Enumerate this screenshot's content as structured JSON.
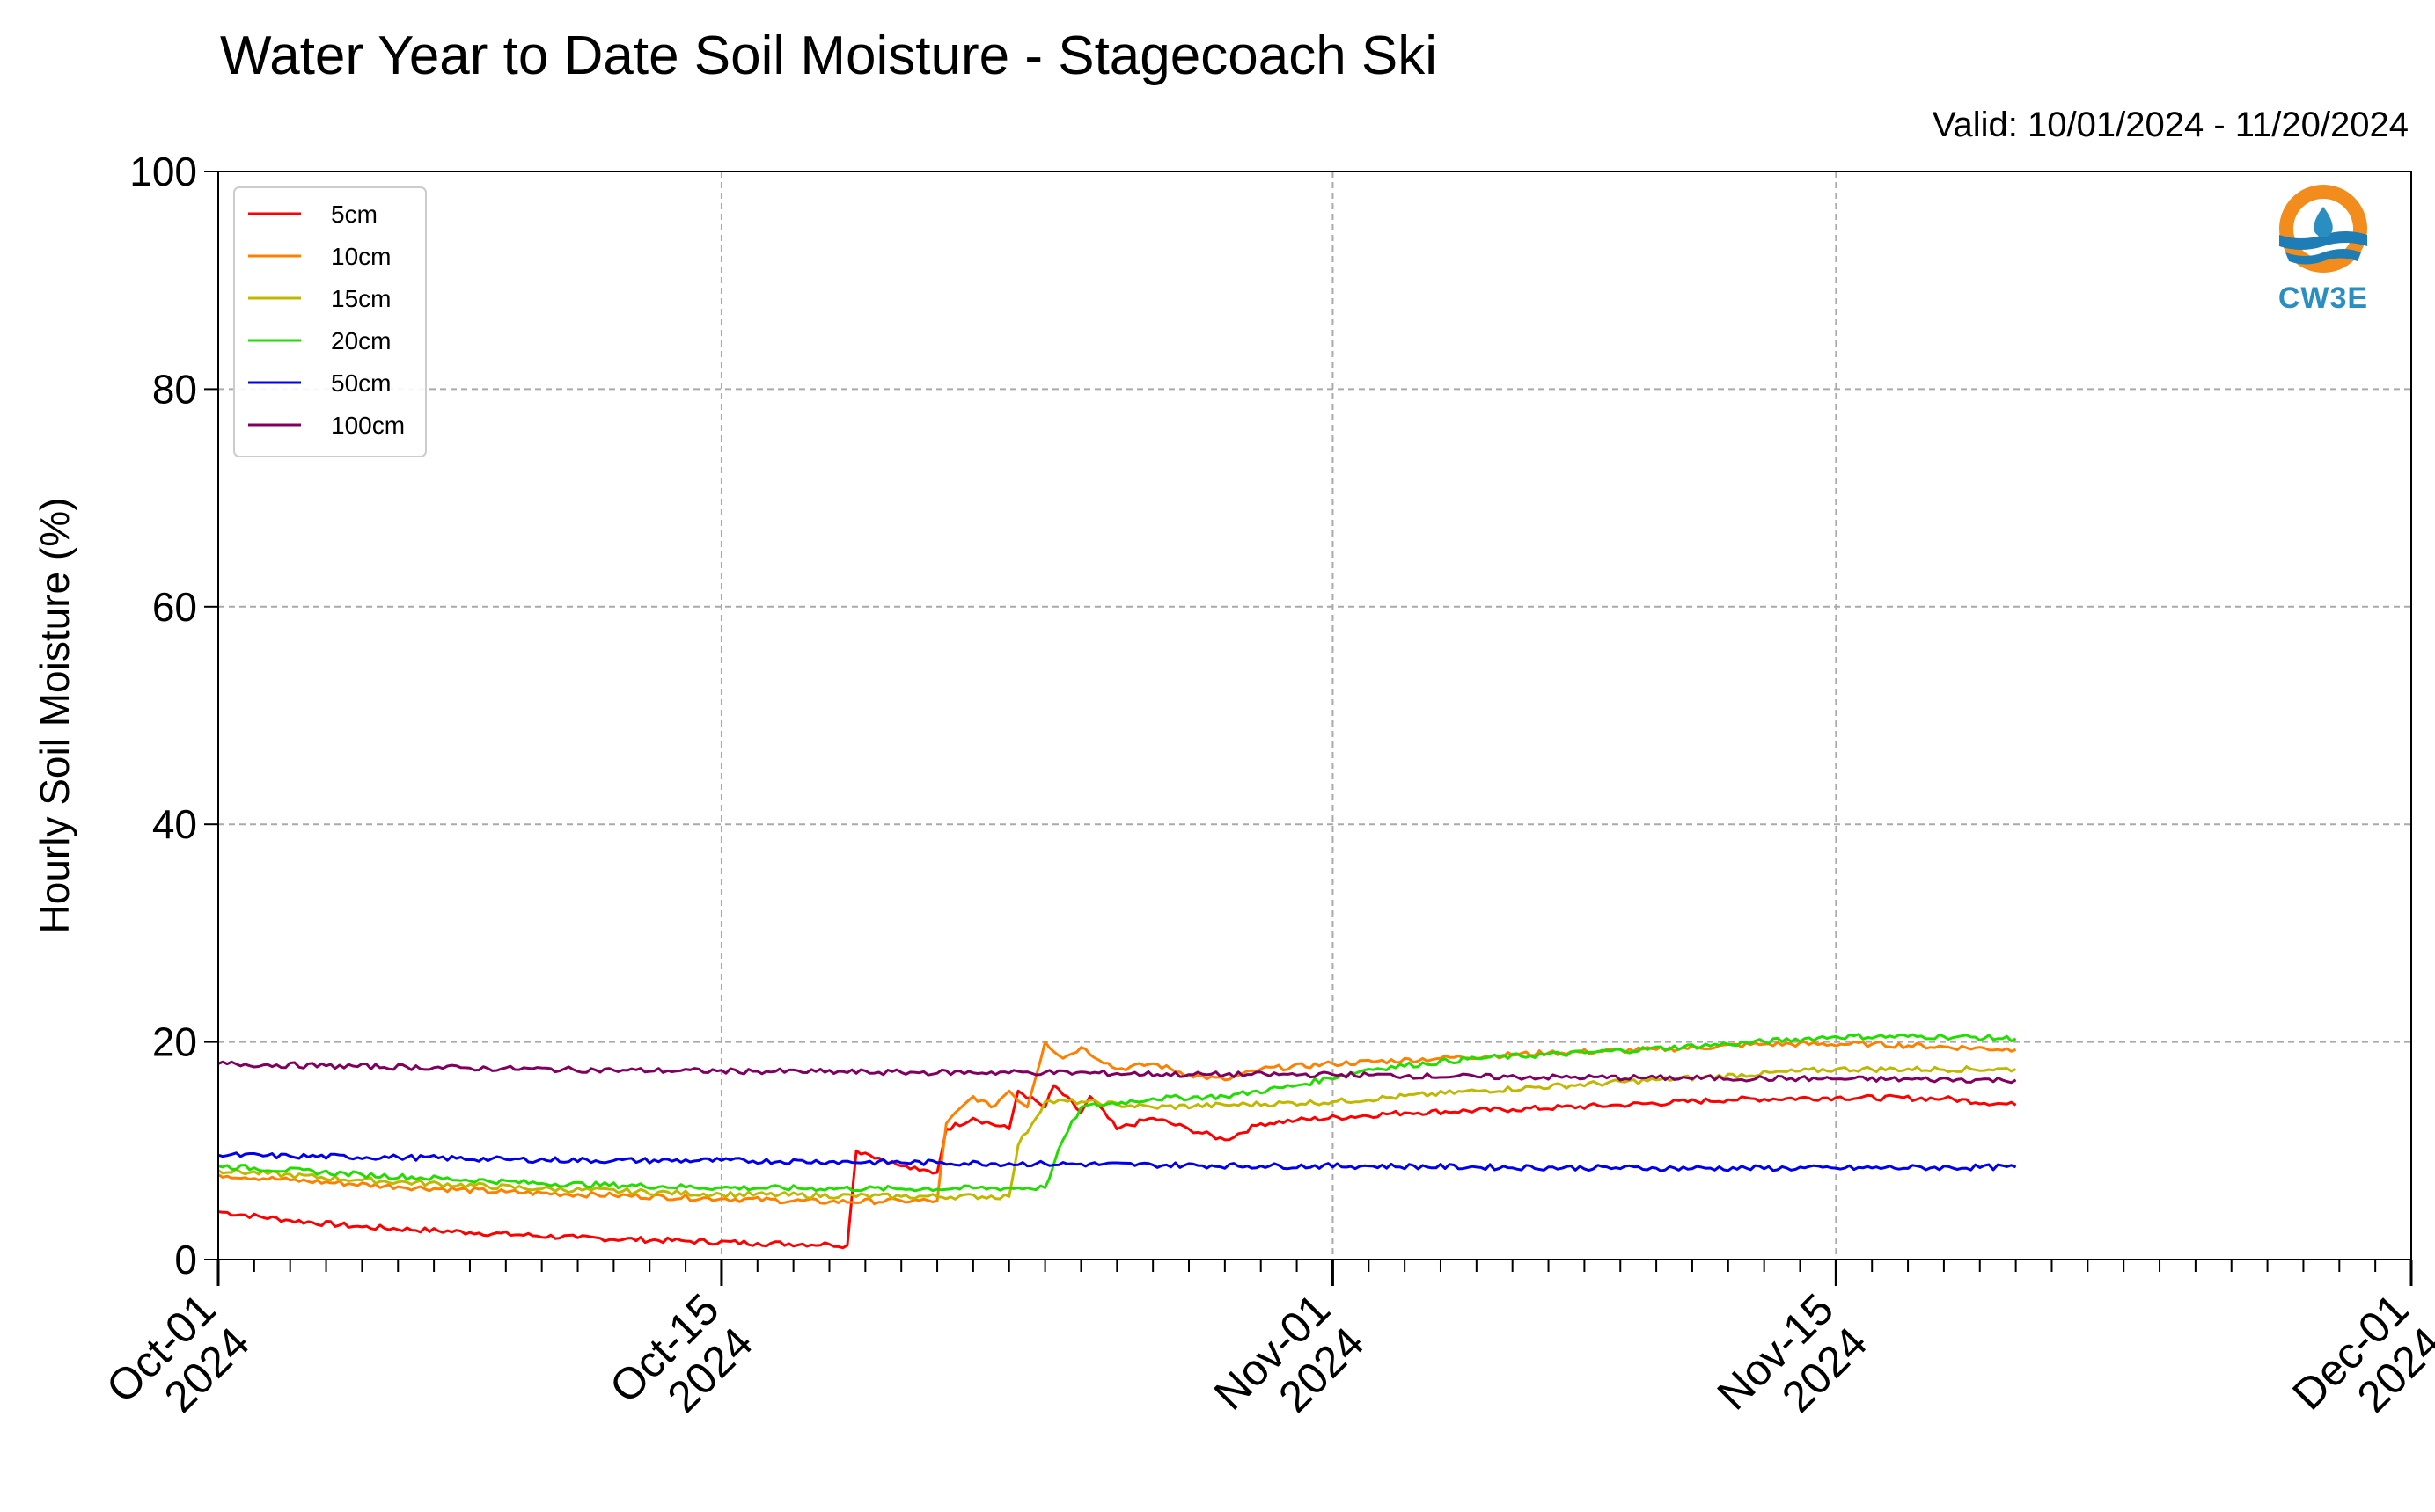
{
  "chart_data": {
    "type": "line",
    "title": "Water Year to Date Soil Moisture - Stagecoach Ski",
    "subtitle": "Valid: 10/01/2024 - 11/20/2024",
    "ylabel": "Hourly Soil Moisture (%)",
    "xlabel": "",
    "ylim": [
      0,
      100
    ],
    "xlim": [
      "2024-10-01",
      "2024-12-01"
    ],
    "yticks": [
      0,
      20,
      40,
      60,
      80,
      100
    ],
    "xticks": [
      {
        "date": "2024-10-01",
        "label1": "Oct-01",
        "label2": "2024"
      },
      {
        "date": "2024-10-15",
        "label1": "Oct-15",
        "label2": "2024"
      },
      {
        "date": "2024-11-01",
        "label1": "Nov-01",
        "label2": "2024"
      },
      {
        "date": "2024-11-15",
        "label1": "Nov-15",
        "label2": "2024"
      },
      {
        "date": "2024-12-01",
        "label1": "Dec-01",
        "label2": "2024"
      }
    ],
    "grid": true,
    "legend_position": "top-left",
    "series": [
      {
        "name": "5cm",
        "color": "#ff0000",
        "x": [
          "2024-10-01",
          "2024-10-03",
          "2024-10-05",
          "2024-10-08",
          "2024-10-11",
          "2024-10-14",
          "2024-10-16",
          "2024-10-18",
          "2024-10-18T12",
          "2024-10-18T18",
          "2024-10-19",
          "2024-10-20",
          "2024-10-20T12",
          "2024-10-21",
          "2024-10-21T06",
          "2024-10-22",
          "2024-10-23",
          "2024-10-23T06",
          "2024-10-24",
          "2024-10-24T06",
          "2024-10-25",
          "2024-10-25T06",
          "2024-10-26",
          "2024-10-27",
          "2024-10-28",
          "2024-10-29",
          "2024-10-30",
          "2024-10-31",
          "2024-11-03",
          "2024-11-06",
          "2024-11-09",
          "2024-11-12",
          "2024-11-15",
          "2024-11-18",
          "2024-11-20"
        ],
        "y": [
          4.4,
          3.6,
          3.0,
          2.5,
          2.0,
          1.7,
          1.5,
          1.4,
          1.3,
          10.0,
          9.8,
          8.6,
          8.2,
          8.0,
          12.0,
          13.0,
          12.0,
          15.5,
          14.0,
          16.0,
          13.5,
          15.0,
          12.0,
          13.0,
          12.0,
          11.0,
          12.5,
          12.8,
          13.5,
          13.8,
          14.2,
          14.7,
          14.9,
          14.8,
          14.2
        ]
      },
      {
        "name": "10cm",
        "color": "#ff8000",
        "x": [
          "2024-10-01",
          "2024-10-03",
          "2024-10-06",
          "2024-10-09",
          "2024-10-12",
          "2024-10-15",
          "2024-10-18",
          "2024-10-20",
          "2024-10-21",
          "2024-10-21T06",
          "2024-10-22",
          "2024-10-22T12",
          "2024-10-23",
          "2024-10-23T12",
          "2024-10-24",
          "2024-10-24T12",
          "2024-10-25",
          "2024-10-26",
          "2024-10-27",
          "2024-10-28",
          "2024-10-29",
          "2024-10-30",
          "2024-11-01",
          "2024-11-04",
          "2024-11-07",
          "2024-11-10",
          "2024-11-13",
          "2024-11-16",
          "2024-11-20"
        ],
        "y": [
          7.8,
          7.3,
          6.7,
          6.2,
          5.9,
          5.6,
          5.3,
          5.4,
          5.4,
          12.5,
          15.0,
          14.0,
          15.5,
          14.0,
          20.0,
          18.5,
          19.5,
          17.5,
          18.0,
          17.0,
          16.5,
          17.5,
          18.0,
          18.5,
          19.0,
          19.3,
          19.8,
          19.8,
          19.3
        ]
      },
      {
        "name": "15cm",
        "color": "#c0b800",
        "x": [
          "2024-10-01",
          "2024-10-05",
          "2024-10-10",
          "2024-10-15",
          "2024-10-20",
          "2024-10-23",
          "2024-10-23T06",
          "2024-10-24",
          "2024-10-25",
          "2024-10-27",
          "2024-10-29",
          "2024-11-01",
          "2024-11-05",
          "2024-11-10",
          "2024-11-15",
          "2024-11-20"
        ],
        "y": [
          8.2,
          7.3,
          6.5,
          6.0,
          5.8,
          5.8,
          10.5,
          14.5,
          14.5,
          14.0,
          14.2,
          14.5,
          15.5,
          16.5,
          17.5,
          17.5
        ]
      },
      {
        "name": "20cm",
        "color": "#22dd00",
        "x": [
          "2024-10-01",
          "2024-10-05",
          "2024-10-10",
          "2024-10-15",
          "2024-10-20",
          "2024-10-24",
          "2024-10-24T12",
          "2024-10-25",
          "2024-10-27",
          "2024-10-29",
          "2024-10-31",
          "2024-11-02",
          "2024-11-05",
          "2024-11-08",
          "2024-11-12",
          "2024-11-15",
          "2024-11-18",
          "2024-11-20"
        ],
        "y": [
          8.6,
          7.8,
          7.0,
          6.6,
          6.5,
          6.6,
          11.0,
          14.0,
          14.8,
          15.0,
          16.0,
          17.5,
          18.5,
          19.0,
          19.8,
          20.5,
          20.5,
          20.3
        ]
      },
      {
        "name": "50cm",
        "color": "#0000ee",
        "x": [
          "2024-10-01",
          "2024-10-03",
          "2024-10-06",
          "2024-10-09",
          "2024-10-12",
          "2024-10-15",
          "2024-10-18",
          "2024-10-21",
          "2024-10-24",
          "2024-10-27",
          "2024-10-30",
          "2024-11-02",
          "2024-11-05",
          "2024-11-10",
          "2024-11-15",
          "2024-11-20"
        ],
        "y": [
          9.6,
          9.5,
          9.4,
          9.2,
          9.1,
          9.1,
          9.0,
          8.9,
          8.8,
          8.7,
          8.6,
          8.6,
          8.5,
          8.4,
          8.4,
          8.5
        ]
      },
      {
        "name": "100cm",
        "color": "#800060",
        "x": [
          "2024-10-01",
          "2024-10-04",
          "2024-10-08",
          "2024-10-12",
          "2024-10-16",
          "2024-10-20",
          "2024-10-24",
          "2024-10-28",
          "2024-11-01",
          "2024-11-05",
          "2024-11-10",
          "2024-11-15",
          "2024-11-20"
        ],
        "y": [
          18.0,
          17.8,
          17.6,
          17.4,
          17.3,
          17.2,
          17.2,
          17.0,
          17.0,
          16.8,
          16.7,
          16.6,
          16.5
        ]
      }
    ]
  },
  "logo": {
    "text": "CW3E",
    "icon": "cw3e-water-drop-logo"
  }
}
